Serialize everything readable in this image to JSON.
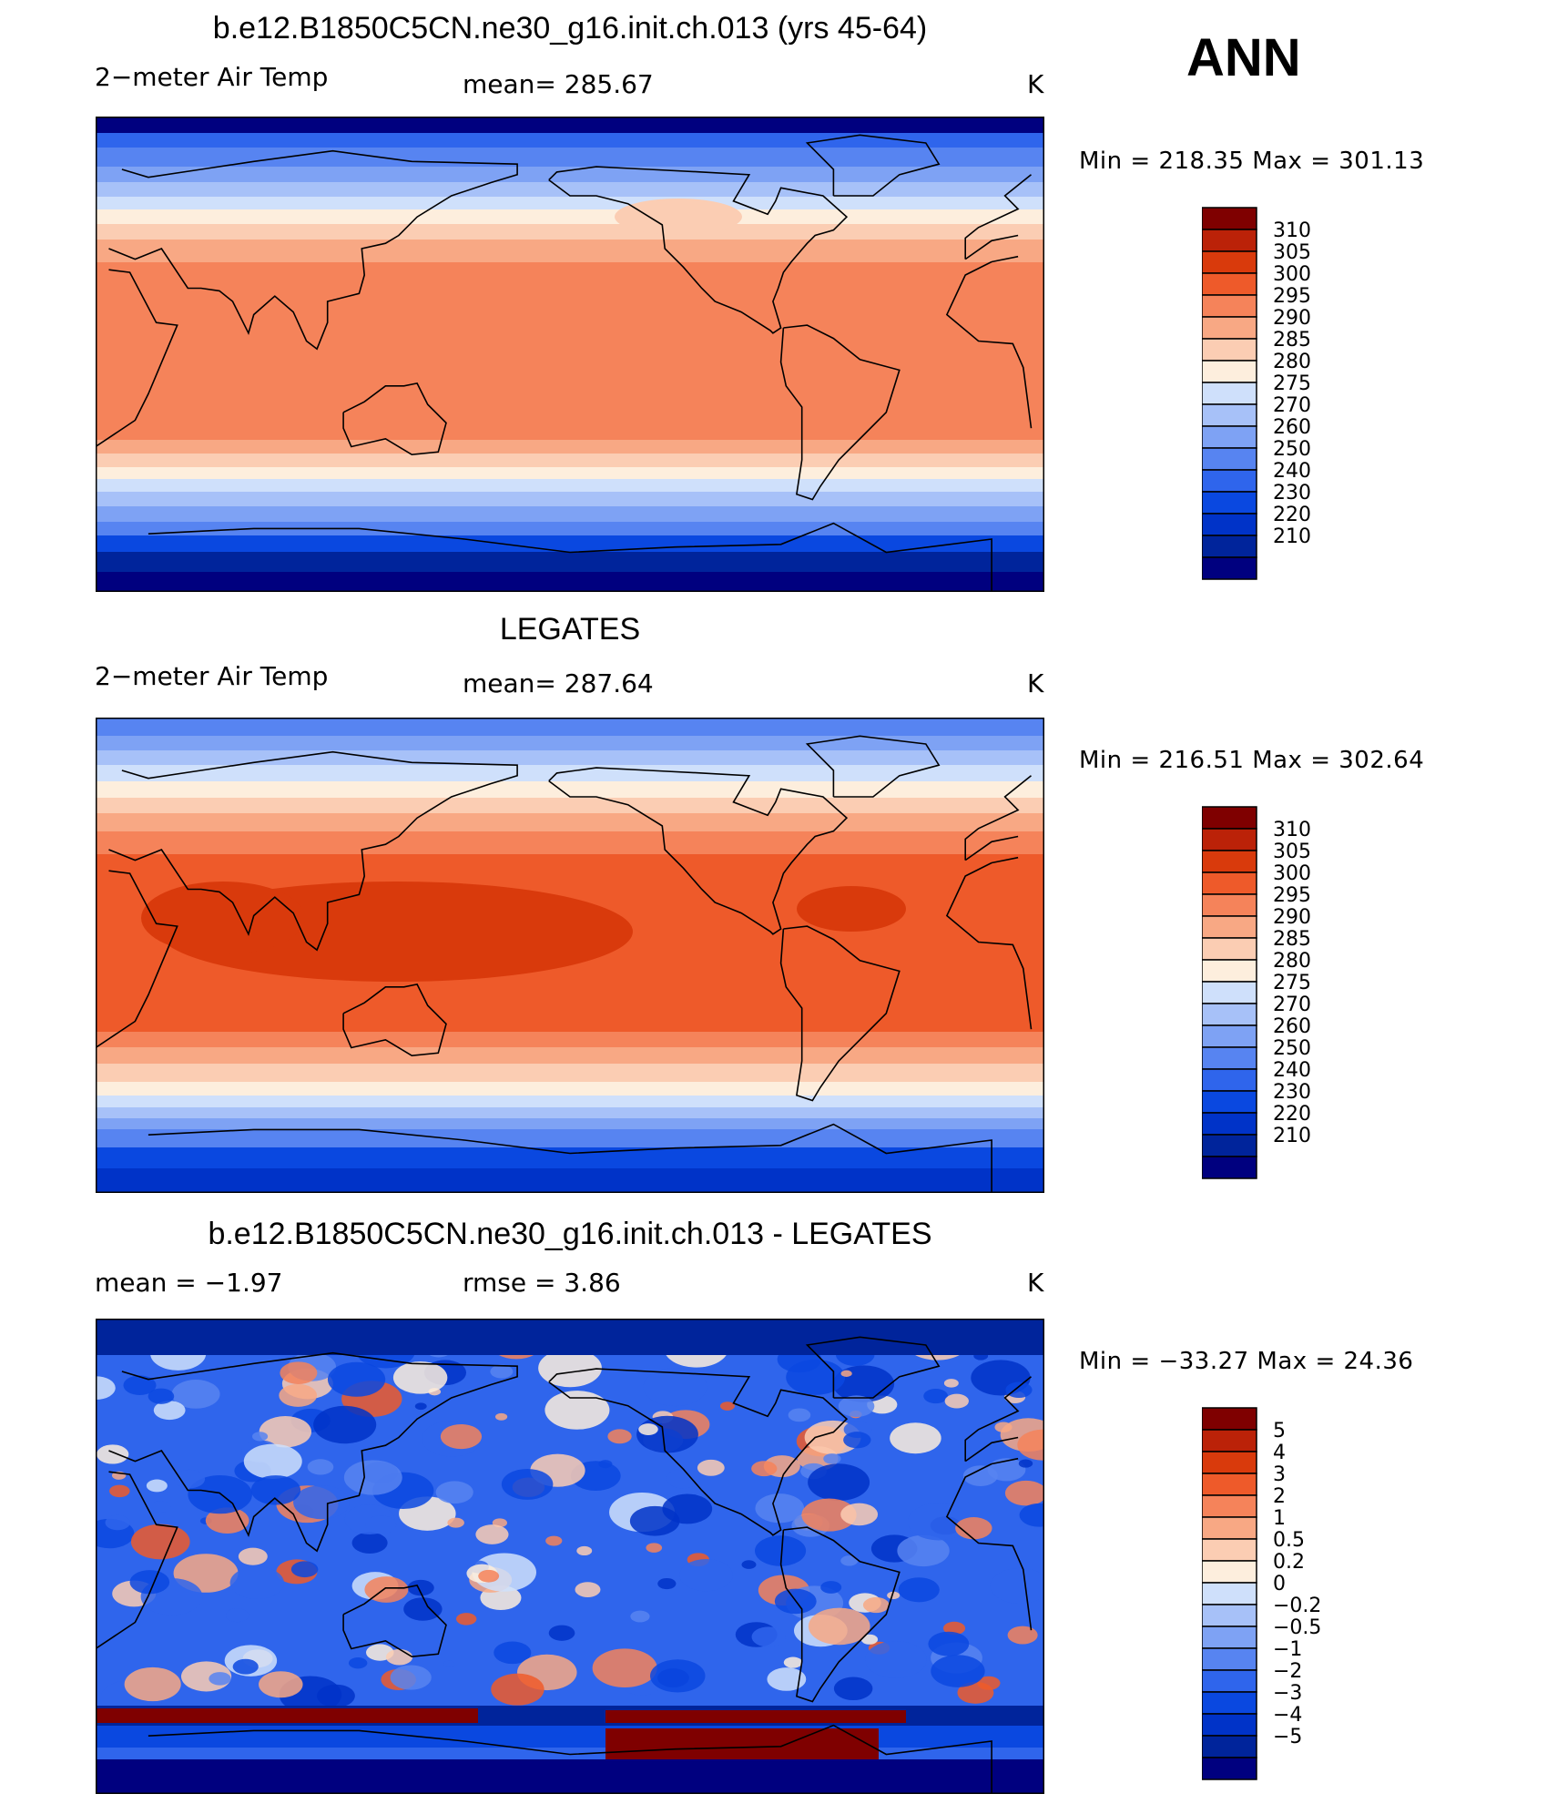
{
  "season": "ANN",
  "contour_colors": {
    "abs": [
      "#00007f",
      "#00249b",
      "#0033c8",
      "#0a48e0",
      "#2f65ec",
      "#5784f1",
      "#7ea2f4",
      "#a7c1f8",
      "#cfe0fb",
      "#fdeedd",
      "#fbcdb3",
      "#f8a884",
      "#f5835a",
      "#ee5a2a",
      "#d93a0c",
      "#bb2208",
      "#7f0000"
    ],
    "diff": [
      "#00007f",
      "#00249b",
      "#0033c8",
      "#0a48e0",
      "#2f65ec",
      "#5784f1",
      "#7ea2f4",
      "#a7c1f8",
      "#cfe0fb",
      "#fdeedd",
      "#fbcdb3",
      "#f8a884",
      "#f5835a",
      "#ee5a2a",
      "#d93a0c",
      "#bb2208",
      "#7f0000"
    ]
  },
  "panels": [
    {
      "title": "b.e12.B1850C5CN.ne30_g16.init.ch.013 (yrs 45-64)",
      "variable": "2−meter Air Temp",
      "stat": "mean=  285.67",
      "units": "K",
      "minmax": "Min  =  218.35  Max  =  301.13",
      "colorbar_levels": [
        "310",
        "305",
        "300",
        "295",
        "290",
        "285",
        "280",
        "275",
        "270",
        "260",
        "250",
        "240",
        "230",
        "220",
        "210"
      ],
      "field": "model"
    },
    {
      "title": "LEGATES",
      "variable": "2−meter Air Temp",
      "stat": "mean=  287.64",
      "units": "K",
      "minmax": "Min  =  216.51  Max  =  302.64",
      "colorbar_levels": [
        "310",
        "305",
        "300",
        "295",
        "290",
        "285",
        "280",
        "275",
        "270",
        "260",
        "250",
        "240",
        "230",
        "220",
        "210"
      ],
      "field": "obs"
    },
    {
      "title": "b.e12.B1850C5CN.ne30_g16.init.ch.013 - LEGATES",
      "variable": "mean  =    −1.97",
      "stat": "rmse  =     3.86",
      "units": "K",
      "minmax": "Min  =  −33.27  Max  =    24.36",
      "colorbar_levels": [
        "5",
        "4",
        "3",
        "2",
        "1",
        "0.5",
        "0.2",
        "0",
        "−0.2",
        "−0.5",
        "−1",
        "−2",
        "−3",
        "−4",
        "−5"
      ],
      "field": "diff"
    }
  ]
}
